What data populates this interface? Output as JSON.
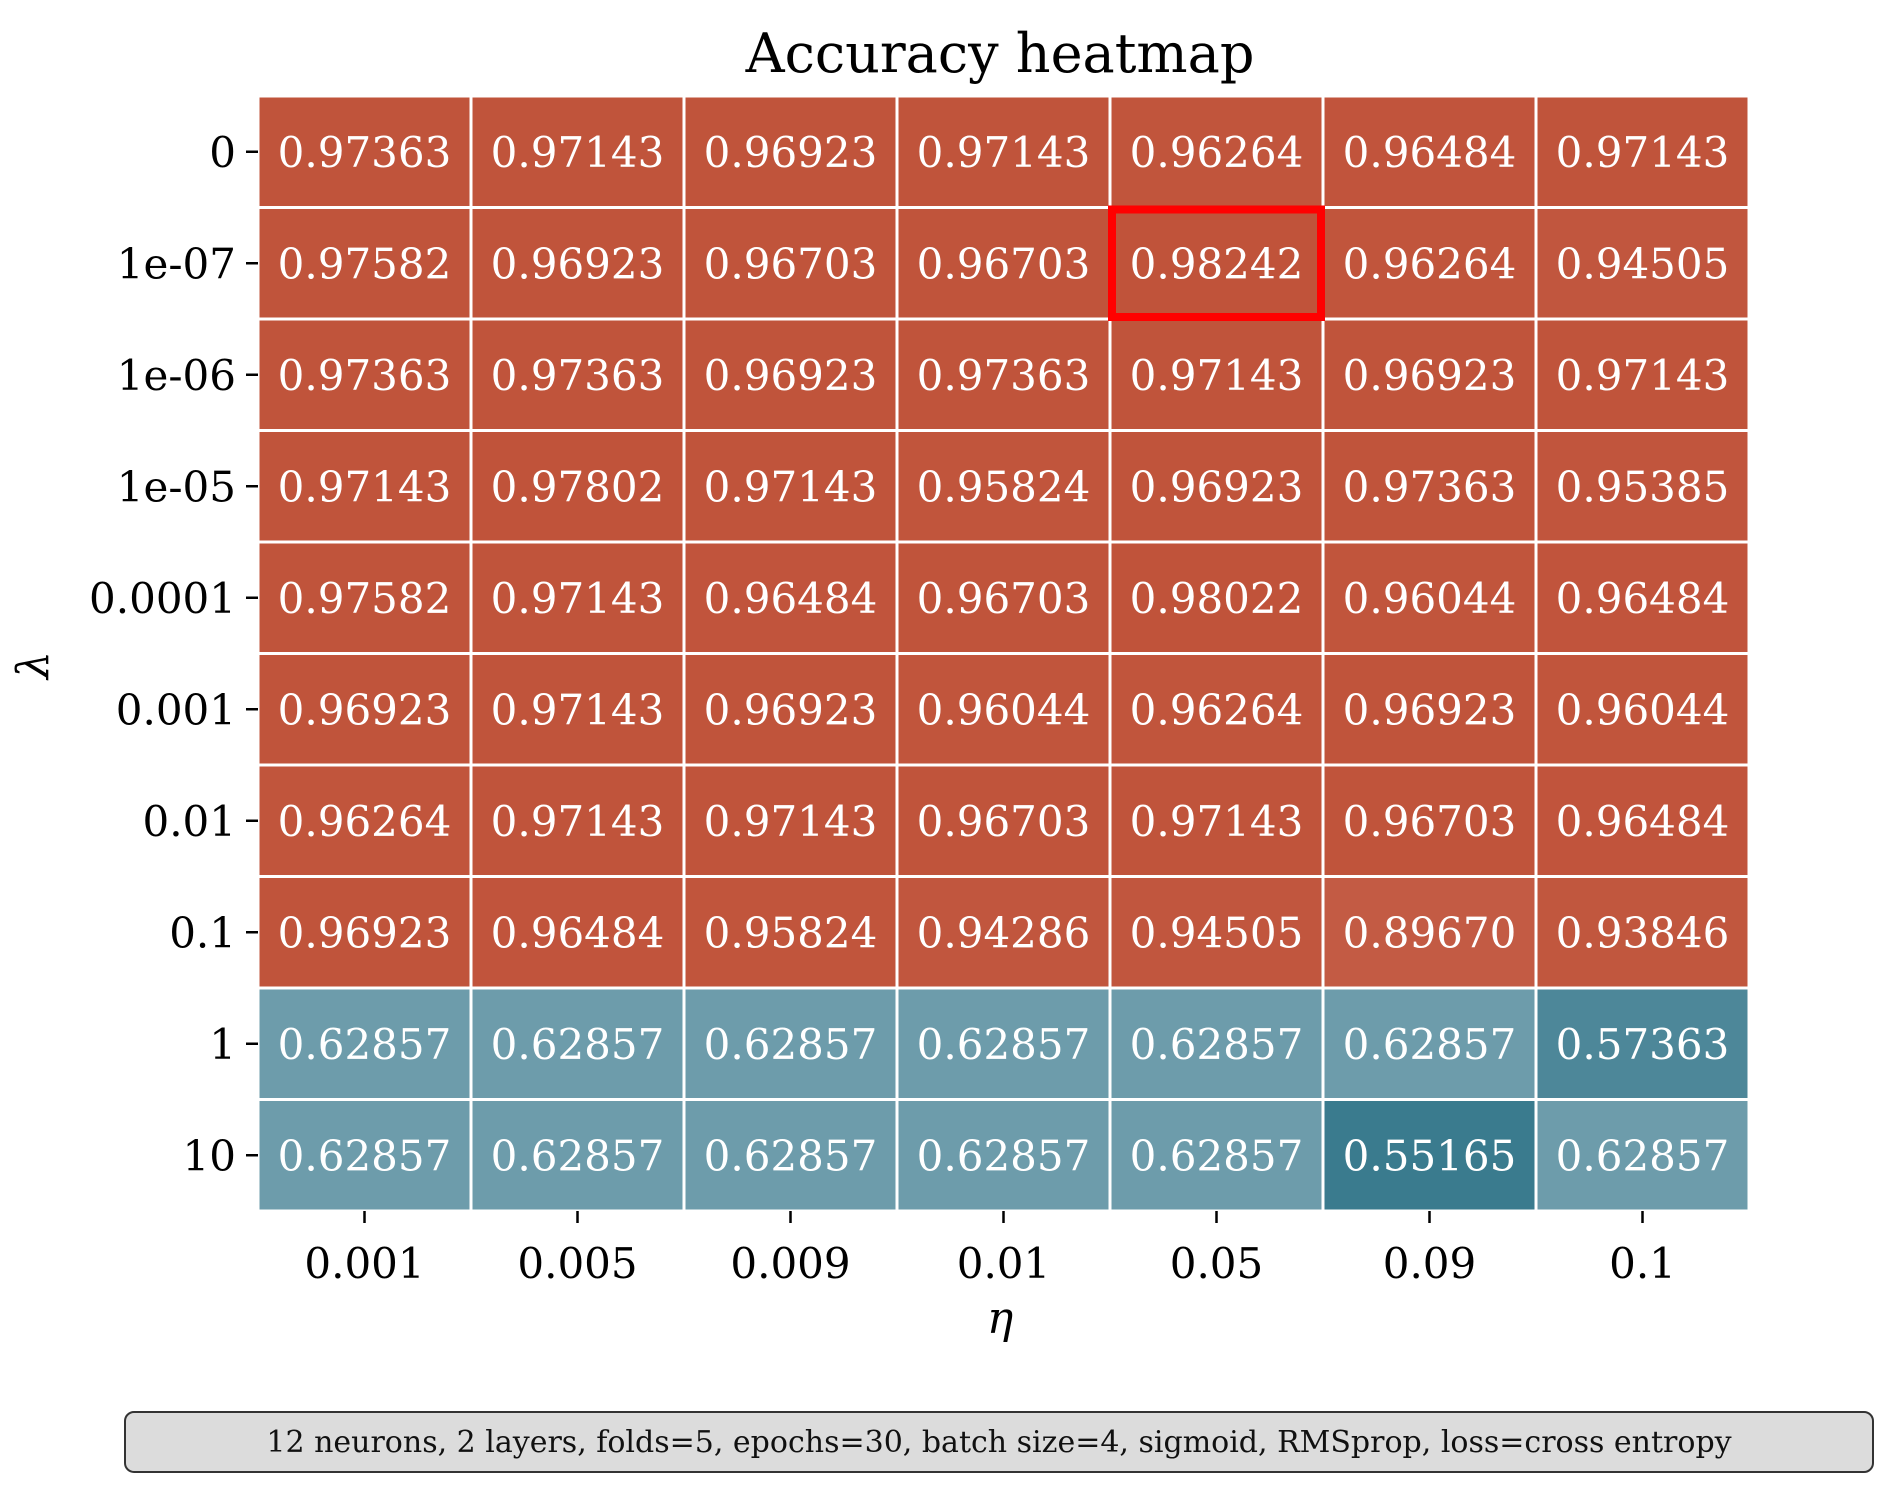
{
  "chart_data": {
    "type": "heatmap",
    "title": "Accuracy heatmap",
    "xlabel": "η",
    "ylabel": "λ",
    "x_categories": [
      "0.001",
      "0.005",
      "0.009",
      "0.01",
      "0.05",
      "0.09",
      "0.1"
    ],
    "y_categories": [
      "0",
      "1e-07",
      "1e-06",
      "1e-05",
      "0.0001",
      "0.001",
      "0.01",
      "0.1",
      "1",
      "10"
    ],
    "values": [
      [
        "0.97363",
        "0.97143",
        "0.96923",
        "0.97143",
        "0.96264",
        "0.96484",
        "0.97143"
      ],
      [
        "0.97582",
        "0.96923",
        "0.96703",
        "0.96703",
        "0.98242",
        "0.96264",
        "0.94505"
      ],
      [
        "0.97363",
        "0.97363",
        "0.96923",
        "0.97363",
        "0.97143",
        "0.96923",
        "0.97143"
      ],
      [
        "0.97143",
        "0.97802",
        "0.97143",
        "0.95824",
        "0.96923",
        "0.97363",
        "0.95385"
      ],
      [
        "0.97582",
        "0.97143",
        "0.96484",
        "0.96703",
        "0.98022",
        "0.96044",
        "0.96484"
      ],
      [
        "0.96923",
        "0.97143",
        "0.96923",
        "0.96044",
        "0.96264",
        "0.96923",
        "0.96044"
      ],
      [
        "0.96264",
        "0.97143",
        "0.97143",
        "0.96703",
        "0.97143",
        "0.96703",
        "0.96484"
      ],
      [
        "0.96923",
        "0.96484",
        "0.95824",
        "0.94286",
        "0.94505",
        "0.89670",
        "0.93846"
      ],
      [
        "0.62857",
        "0.62857",
        "0.62857",
        "0.62857",
        "0.62857",
        "0.62857",
        "0.57363"
      ],
      [
        "0.62857",
        "0.62857",
        "0.62857",
        "0.62857",
        "0.62857",
        "0.55165",
        "0.62857"
      ]
    ],
    "highlight": {
      "row": 1,
      "col": 4,
      "color": "#ff0000"
    },
    "colors": {
      "high": "#c0533a",
      "mid_high": "#d9998a",
      "mid_low": "#7fa8b5",
      "low": "#3a7b8e",
      "grid": "#ffffff"
    },
    "footnote": "12 neurons, 2 layers, folds=5, epochs=30, batch size=4, sigmoid, RMSprop, loss=cross entropy"
  }
}
